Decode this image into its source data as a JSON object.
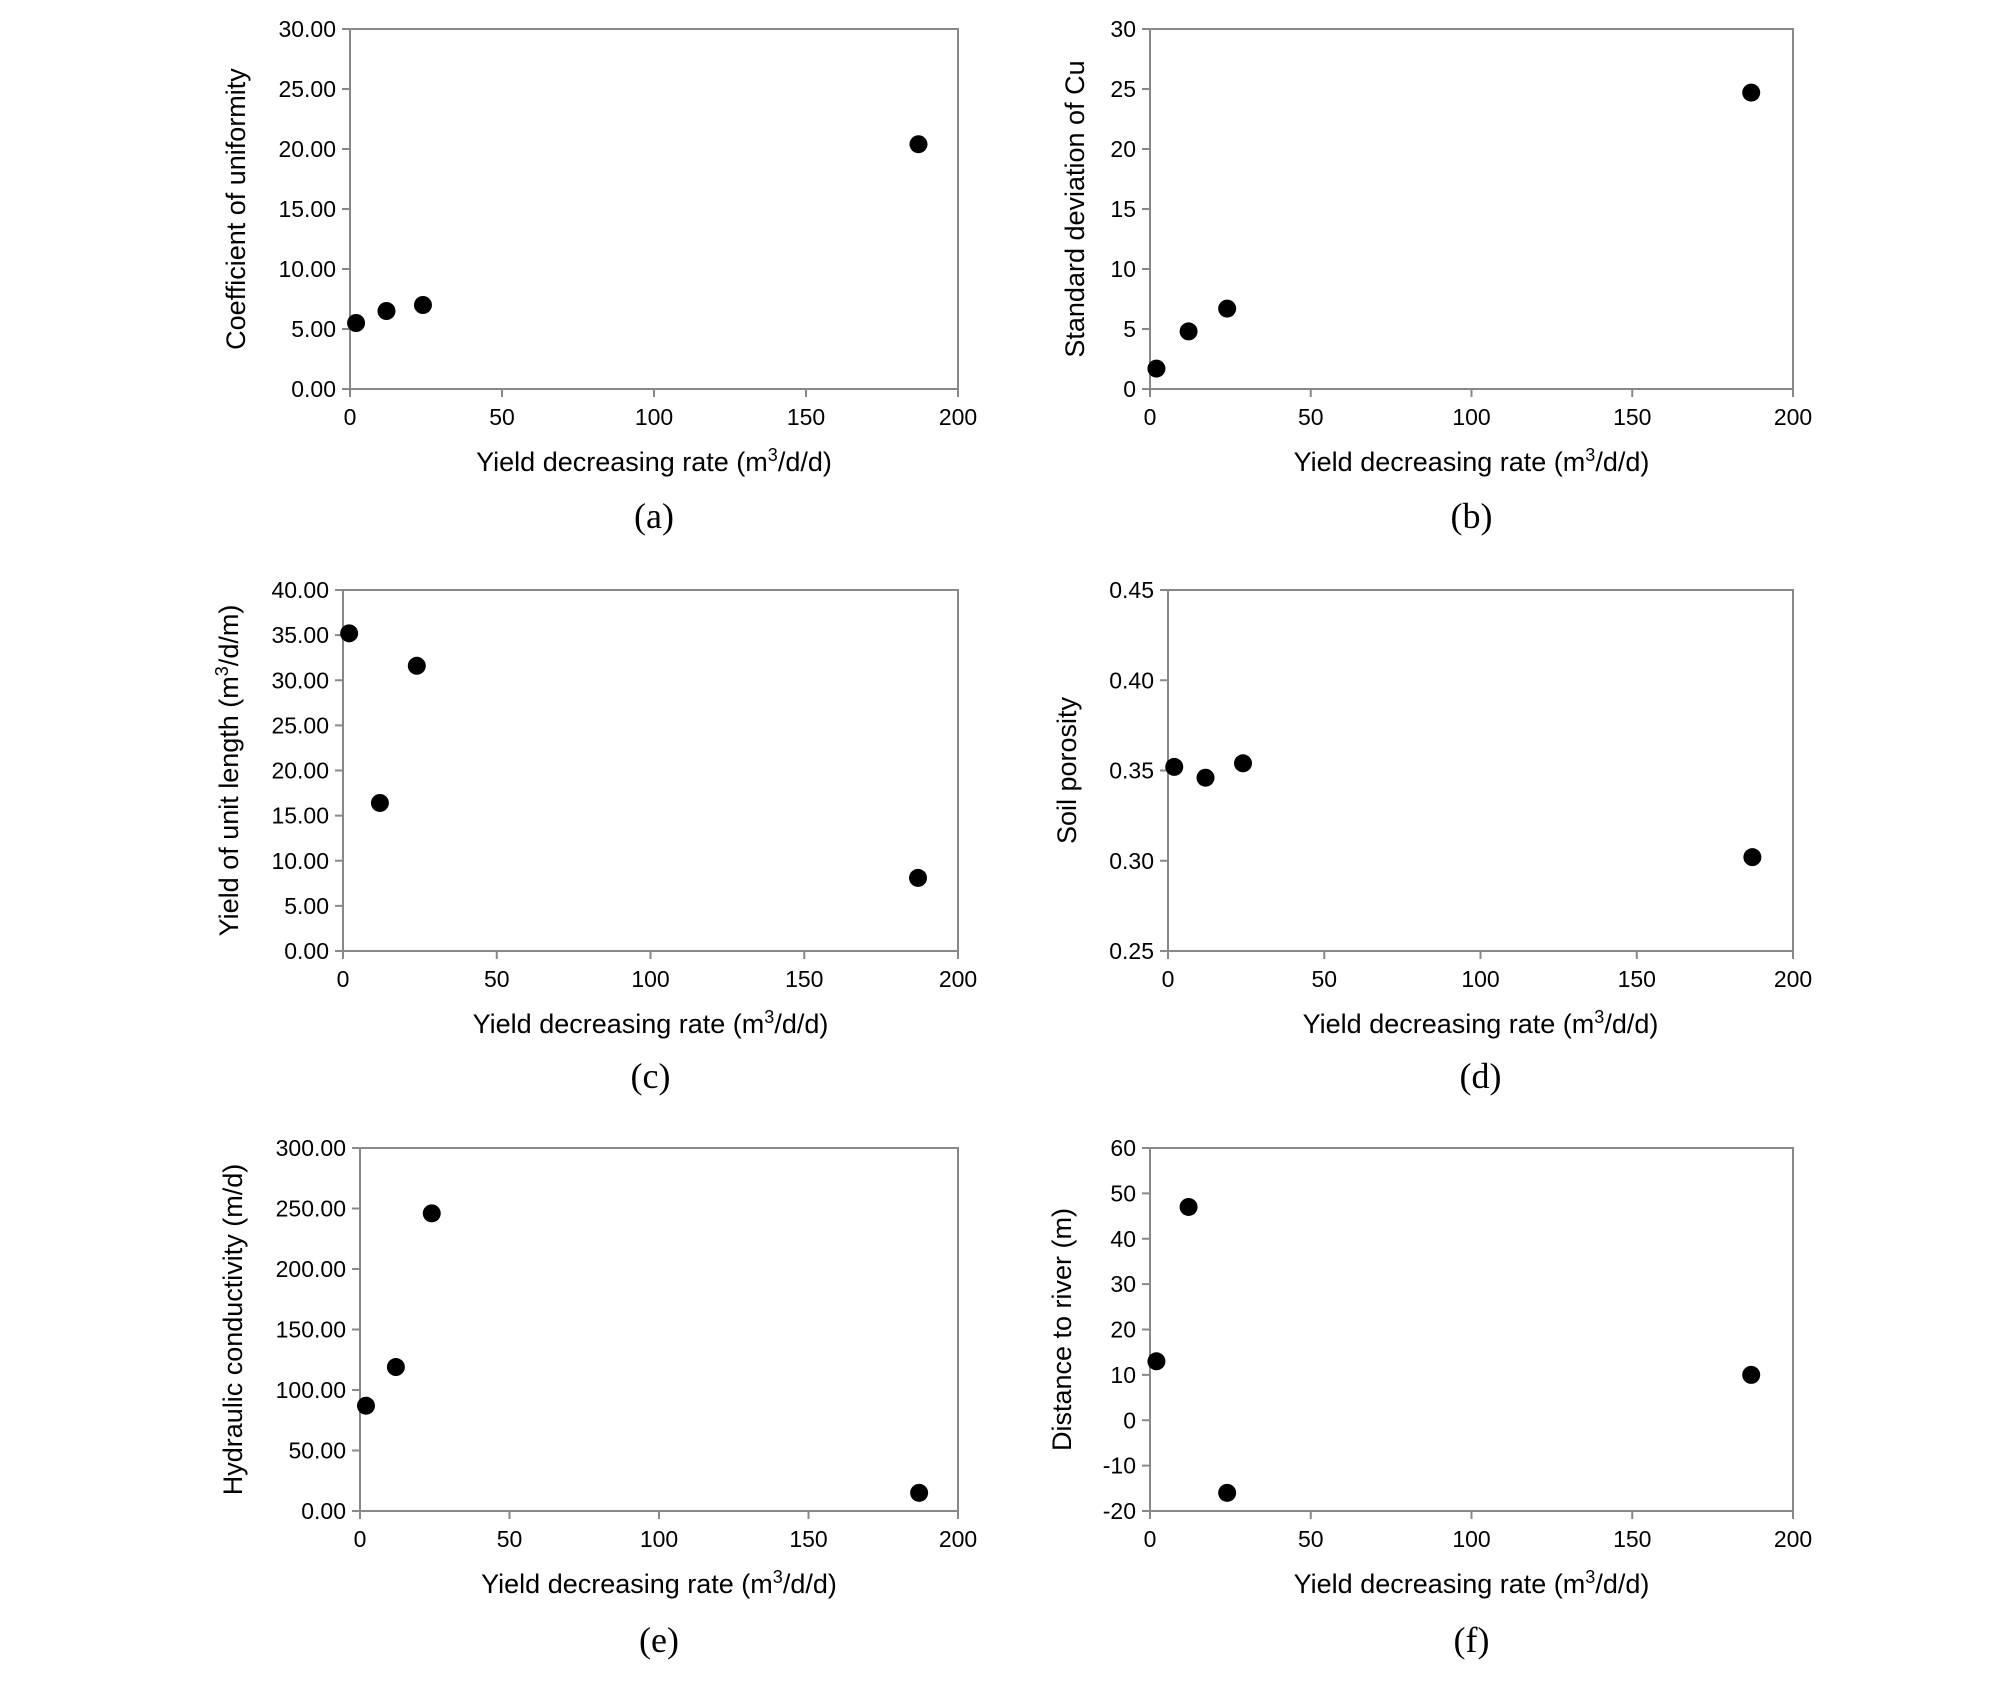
{
  "chart_data": [
    {
      "type": "scatter",
      "panel_label": "(a)",
      "xlabel": "Yield decreasing rate (m³/d/d)",
      "ylabel": "Coefficient of uniformity",
      "xlim": [
        0,
        200
      ],
      "ylim": [
        0,
        30
      ],
      "xticks": [
        "0",
        "50",
        "100",
        "150",
        "200"
      ],
      "yticks": [
        "0.00",
        "5.00",
        "10.00",
        "15.00",
        "20.00",
        "25.00",
        "30.00"
      ],
      "x": [
        2,
        12,
        24,
        187
      ],
      "y": [
        5.5,
        6.5,
        7.0,
        20.4
      ],
      "grid": false,
      "marker_color": "#000000"
    },
    {
      "type": "scatter",
      "panel_label": "(b)",
      "xlabel": "Yield decreasing rate (m³/d/d)",
      "ylabel": "Standard deviation of Cu",
      "xlim": [
        0,
        200
      ],
      "ylim": [
        0,
        30
      ],
      "xticks": [
        "0",
        "50",
        "100",
        "150",
        "200"
      ],
      "yticks": [
        "0",
        "5",
        "10",
        "15",
        "20",
        "25",
        "30"
      ],
      "x": [
        2,
        12,
        24,
        187
      ],
      "y": [
        1.7,
        4.8,
        6.7,
        24.7
      ],
      "grid": false,
      "marker_color": "#000000"
    },
    {
      "type": "scatter",
      "panel_label": "(c)",
      "xlabel": "Yield decreasing rate (m³/d/d)",
      "ylabel": "Yield of unit length (m³/d/m)",
      "xlim": [
        0,
        200
      ],
      "ylim": [
        0,
        40
      ],
      "xticks": [
        "0",
        "50",
        "100",
        "150",
        "200"
      ],
      "yticks": [
        "0.00",
        "5.00",
        "10.00",
        "15.00",
        "20.00",
        "25.00",
        "30.00",
        "35.00",
        "40.00"
      ],
      "x": [
        2,
        12,
        24,
        187
      ],
      "y": [
        35.2,
        16.4,
        31.6,
        8.1
      ],
      "grid": false,
      "marker_color": "#000000"
    },
    {
      "type": "scatter",
      "panel_label": "(d)",
      "xlabel": "Yield decreasing rate (m³/d/d)",
      "ylabel": "Soil porosity",
      "xlim": [
        0,
        200
      ],
      "ylim": [
        0.25,
        0.45
      ],
      "xticks": [
        "0",
        "50",
        "100",
        "150",
        "200"
      ],
      "yticks": [
        "0.25",
        "0.30",
        "0.35",
        "0.40",
        "0.45"
      ],
      "x": [
        2,
        12,
        24,
        187
      ],
      "y": [
        0.352,
        0.346,
        0.354,
        0.302
      ],
      "grid": false,
      "marker_color": "#000000"
    },
    {
      "type": "scatter",
      "panel_label": "(e)",
      "xlabel": "Yield decreasing rate (m³/d/d)",
      "ylabel": "Hydraulic conductivity (m/d)",
      "xlim": [
        0,
        200
      ],
      "ylim": [
        0,
        300
      ],
      "xticks": [
        "0",
        "50",
        "100",
        "150",
        "200"
      ],
      "yticks": [
        "0.00",
        "50.00",
        "100.00",
        "150.00",
        "200.00",
        "250.00",
        "300.00"
      ],
      "x": [
        2,
        12,
        24,
        187
      ],
      "y": [
        87,
        119,
        246,
        15
      ],
      "grid": false,
      "marker_color": "#000000"
    },
    {
      "type": "scatter",
      "panel_label": "(f)",
      "xlabel": "Yield decreasing rate (m³/d/d)",
      "ylabel": "Distance to river (m)",
      "xlim": [
        0,
        200
      ],
      "ylim": [
        -20,
        60
      ],
      "xticks": [
        "0",
        "50",
        "100",
        "150",
        "200"
      ],
      "yticks": [
        "-20",
        "-10",
        "0",
        "10",
        "20",
        "30",
        "40",
        "50",
        "60"
      ],
      "x": [
        2,
        12,
        24,
        187
      ],
      "y": [
        13,
        47,
        -16,
        10
      ],
      "grid": false,
      "marker_color": "#000000"
    }
  ]
}
